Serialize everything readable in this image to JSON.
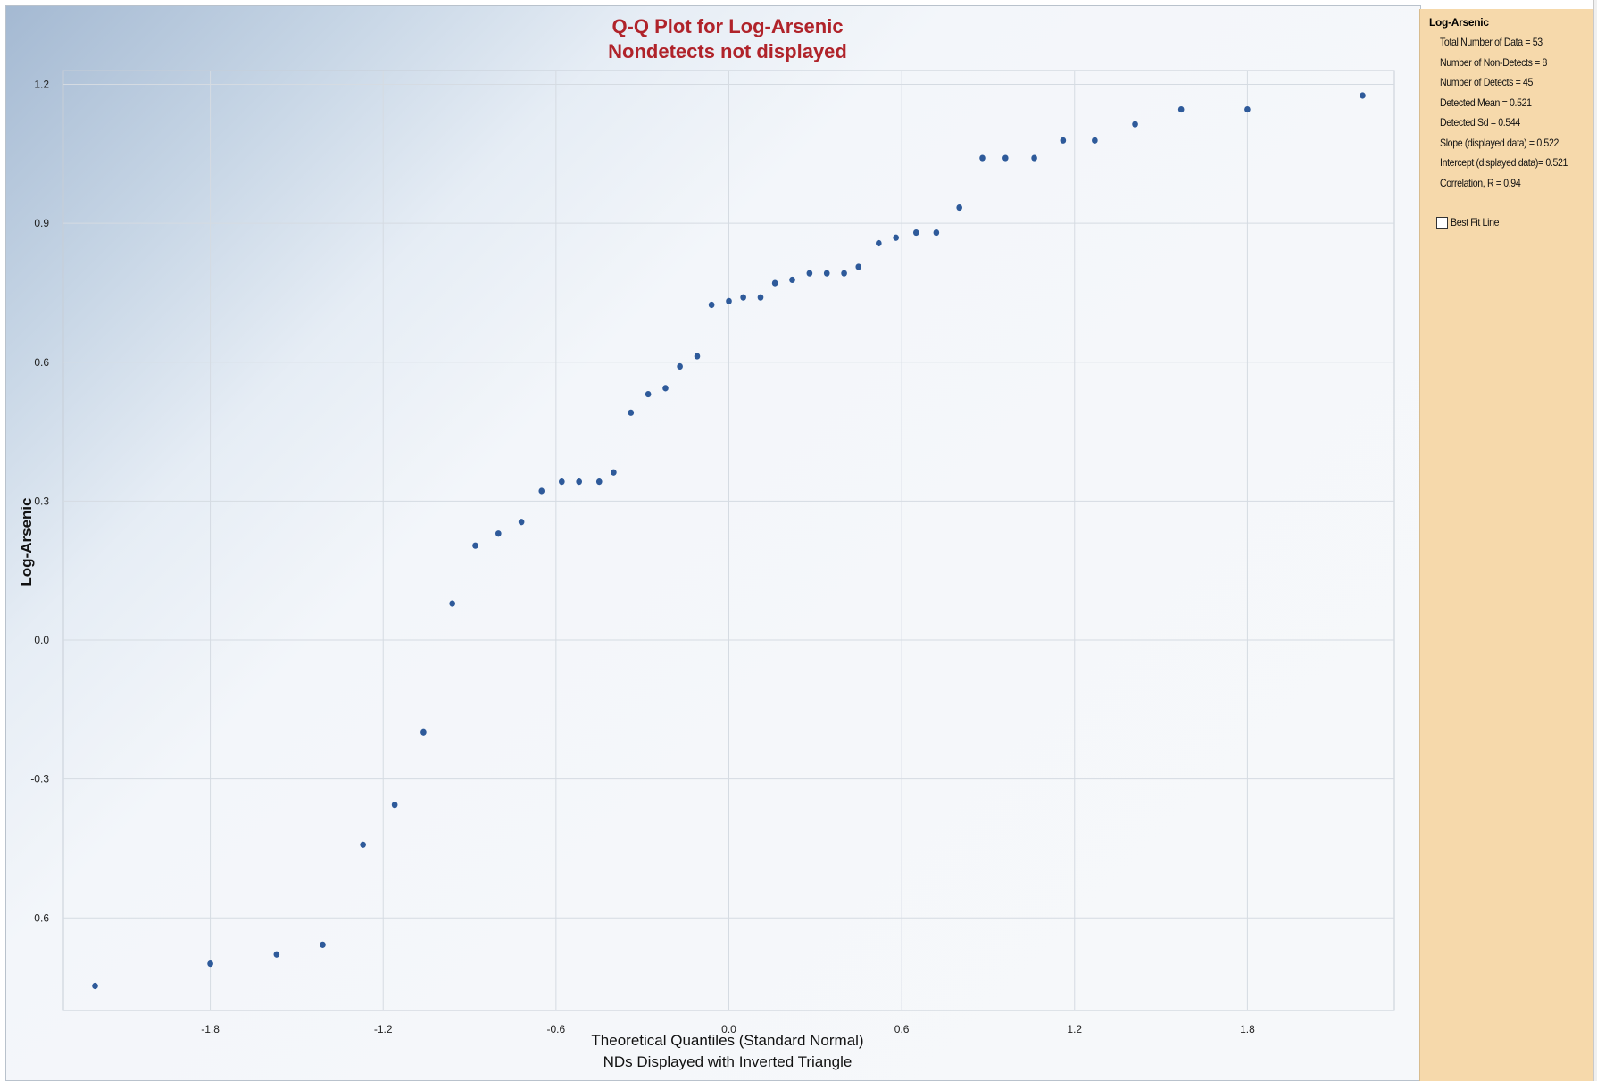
{
  "chart_data": {
    "type": "scatter",
    "title": "Q-Q Plot for Log-Arsenic",
    "subtitle": "Nondetects not displayed",
    "xlabel": "Theoretical Quantiles (Standard Normal)",
    "xlabel2": "NDs Displayed with Inverted Triangle",
    "ylabel": "Log-Arsenic",
    "xlim": [
      -2.31,
      2.31
    ],
    "ylim": [
      -0.8,
      1.23
    ],
    "x_ticks": [
      -1.8,
      -1.2,
      -0.6,
      0.0,
      0.6,
      1.2,
      1.8
    ],
    "x_tick_labels": [
      "-1.8",
      "-1.2",
      "-0.6",
      "0.0",
      "0.6",
      "1.2",
      "1.8"
    ],
    "y_ticks": [
      -0.6,
      -0.3,
      0.0,
      0.3,
      0.6,
      0.9,
      1.2
    ],
    "y_tick_labels": [
      "-0.6",
      "-0.3",
      "0.0",
      "0.3",
      "0.6",
      "0.9",
      "1.2"
    ],
    "grid": true,
    "colors": {
      "title": "#b0232a",
      "point": "#2e5a9a",
      "grid": "#d5dbe2",
      "panel": "#f6d9ab"
    },
    "points": [
      {
        "x": -2.2,
        "y": -0.747
      },
      {
        "x": -1.8,
        "y": -0.699
      },
      {
        "x": -1.57,
        "y": -0.679
      },
      {
        "x": -1.41,
        "y": -0.658
      },
      {
        "x": -1.27,
        "y": -0.442
      },
      {
        "x": -1.16,
        "y": -0.356
      },
      {
        "x": -1.06,
        "y": -0.199
      },
      {
        "x": -0.96,
        "y": 0.079
      },
      {
        "x": -0.88,
        "y": 0.204
      },
      {
        "x": -0.8,
        "y": 0.23
      },
      {
        "x": -0.72,
        "y": 0.255
      },
      {
        "x": -0.65,
        "y": 0.322
      },
      {
        "x": -0.58,
        "y": 0.342
      },
      {
        "x": -0.52,
        "y": 0.342
      },
      {
        "x": -0.45,
        "y": 0.342
      },
      {
        "x": -0.4,
        "y": 0.362
      },
      {
        "x": -0.34,
        "y": 0.491
      },
      {
        "x": -0.28,
        "y": 0.531
      },
      {
        "x": -0.22,
        "y": 0.544
      },
      {
        "x": -0.17,
        "y": 0.591
      },
      {
        "x": -0.11,
        "y": 0.613
      },
      {
        "x": -0.06,
        "y": 0.724
      },
      {
        "x": 0.0,
        "y": 0.732
      },
      {
        "x": 0.05,
        "y": 0.74
      },
      {
        "x": 0.11,
        "y": 0.74
      },
      {
        "x": 0.16,
        "y": 0.771
      },
      {
        "x": 0.22,
        "y": 0.778
      },
      {
        "x": 0.28,
        "y": 0.792
      },
      {
        "x": 0.34,
        "y": 0.792
      },
      {
        "x": 0.4,
        "y": 0.792
      },
      {
        "x": 0.45,
        "y": 0.806
      },
      {
        "x": 0.52,
        "y": 0.857
      },
      {
        "x": 0.58,
        "y": 0.869
      },
      {
        "x": 0.65,
        "y": 0.88
      },
      {
        "x": 0.72,
        "y": 0.88
      },
      {
        "x": 0.8,
        "y": 0.934
      },
      {
        "x": 0.88,
        "y": 1.041
      },
      {
        "x": 0.96,
        "y": 1.041
      },
      {
        "x": 1.06,
        "y": 1.041
      },
      {
        "x": 1.16,
        "y": 1.079
      },
      {
        "x": 1.27,
        "y": 1.079
      },
      {
        "x": 1.41,
        "y": 1.114
      },
      {
        "x": 1.57,
        "y": 1.146
      },
      {
        "x": 1.8,
        "y": 1.146
      },
      {
        "x": 2.2,
        "y": 1.176
      }
    ]
  },
  "stats_panel": {
    "title": "Log-Arsenic",
    "lines": [
      "Total Number of Data = 53",
      "Number of Non-Detects = 8",
      "Number of Detects = 45",
      "Detected Mean = 0.521",
      "Detected Sd = 0.544",
      "Slope (displayed data) = 0.522",
      "Intercept (displayed data)= 0.521",
      "Correlation, R = 0.94"
    ],
    "best_fit_label": "Best Fit Line",
    "best_fit_checked": false
  }
}
